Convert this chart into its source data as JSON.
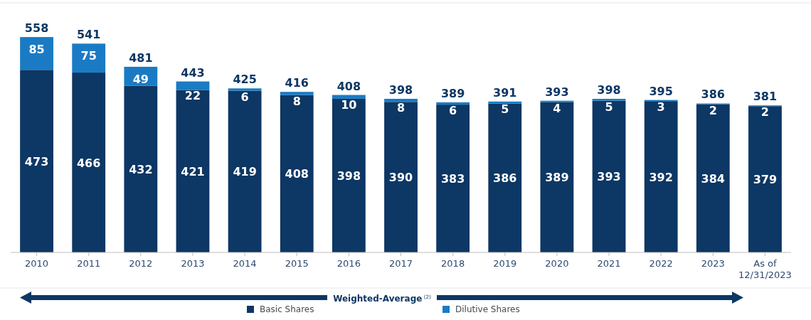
{
  "chart_data": {
    "type": "bar",
    "stacked": true,
    "categories": [
      "2010",
      "2011",
      "2012",
      "2013",
      "2014",
      "2015",
      "2016",
      "2017",
      "2018",
      "2019",
      "2020",
      "2021",
      "2022",
      "2023",
      "As of 12/31/2023"
    ],
    "series": [
      {
        "name": "Basic Shares",
        "color": "#0d3764",
        "values": [
          473,
          466,
          432,
          421,
          419,
          408,
          398,
          390,
          383,
          386,
          389,
          393,
          392,
          384,
          379
        ]
      },
      {
        "name": "Dilutive Shares",
        "color": "#1a7bc4",
        "values": [
          85,
          75,
          49,
          22,
          6,
          8,
          10,
          8,
          6,
          5,
          4,
          5,
          3,
          2,
          2
        ]
      }
    ],
    "totals": [
      "558",
      "541",
      "481",
      "443",
      "425",
      "416",
      "408",
      "398",
      "389",
      "391",
      "393",
      "398",
      "395",
      "386",
      "381"
    ],
    "data_labels": true,
    "tick_labels": "x",
    "legend": "bottom",
    "annotations": [
      "Weighted-Average$^{(2)}$"
    ]
  }
}
